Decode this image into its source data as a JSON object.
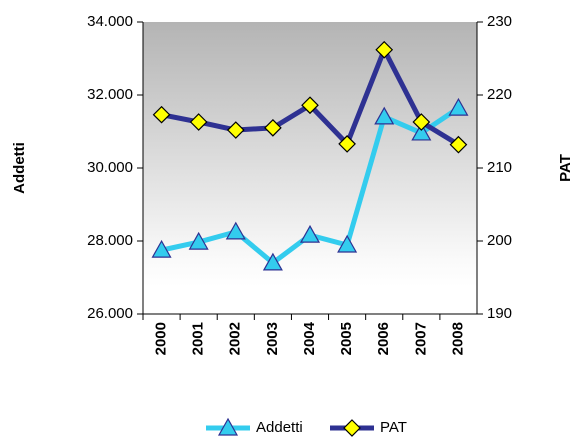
{
  "chart_data": {
    "type": "line",
    "categories": [
      "2000",
      "2001",
      "2002",
      "2003",
      "2004",
      "2005",
      "2006",
      "2007",
      "2008"
    ],
    "series": [
      {
        "name": "Addetti",
        "color": "#33ccee",
        "marker": "triangle",
        "values": [
          27750,
          27970,
          28250,
          27400,
          28160,
          27890,
          31400,
          30960,
          31640
        ]
      },
      {
        "name": "PAT",
        "color": "#2e3192",
        "marker": "diamond",
        "axis": "y2",
        "values": [
          217.3,
          216.3,
          215.2,
          215.5,
          218.6,
          213.3,
          226.2,
          216.3,
          213.2
        ]
      }
    ],
    "ylabel": "Addetti",
    "y2label": "PAT",
    "ylim": [
      26000,
      34000
    ],
    "yticks": [
      {
        "value": 26000,
        "label": "26.000"
      },
      {
        "value": 28000,
        "label": "28.000"
      },
      {
        "value": 30000,
        "label": "30.000"
      },
      {
        "value": 32000,
        "label": "32.000"
      },
      {
        "value": 34000,
        "label": "34.000"
      }
    ],
    "y2lim": [
      190,
      230
    ],
    "y2ticks": [
      190,
      200,
      210,
      220,
      230
    ],
    "legend": "bottom"
  }
}
